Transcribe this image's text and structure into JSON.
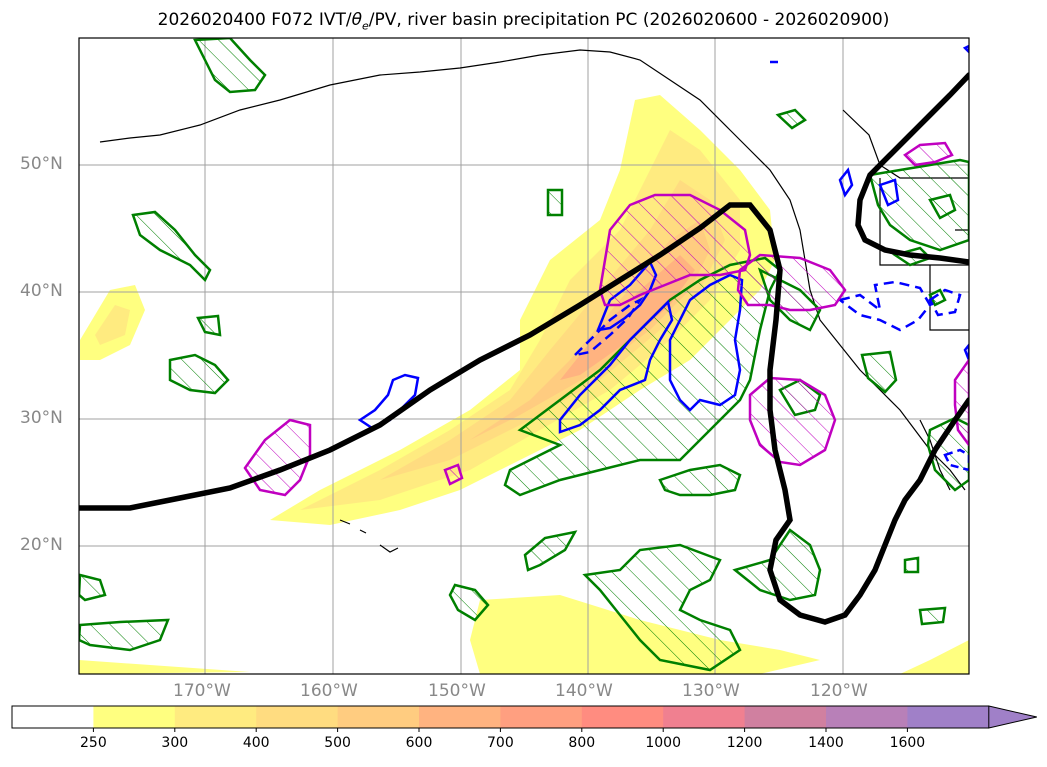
{
  "title_prefix": "2026020400 F072 IVT/",
  "title_theta": "θ",
  "title_theta_sub": "e",
  "title_suffix": "/PV, river basin precipitation PC (2026020600 - 2026020900)",
  "lat_labels": [
    "50°N",
    "40°N",
    "30°N",
    "20°N"
  ],
  "lon_labels": [
    "170°W",
    "160°W",
    "150°W",
    "140°W",
    "130°W",
    "120°W"
  ],
  "colorbar": {
    "ticks": [
      "250",
      "300",
      "400",
      "500",
      "600",
      "700",
      "800",
      "1000",
      "1200",
      "1400",
      "1600"
    ],
    "colors": [
      "#ffffff",
      "#ffff80",
      "#ffeb80",
      "#ffdc80",
      "#ffcc80",
      "#ffb380",
      "#ff9f80",
      "#ff8c80",
      "#f08090",
      "#d080a0",
      "#b880b8",
      "#a080c8"
    ]
  },
  "colors": {
    "theta_e_contour": "#000000",
    "pv_positive": "#008000",
    "pv_negative": "#0000ff",
    "precip_pc": "#c000c0",
    "grid": "#a0a0a0",
    "axis_labels": "#888888"
  }
}
